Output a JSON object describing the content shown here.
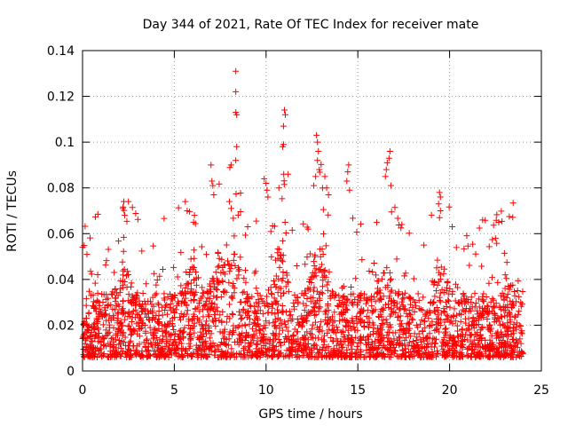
{
  "chart_data": {
    "type": "scatter",
    "title": "Day 344 of 2021, Rate Of TEC Index for receiver mate",
    "xlabel": "GPS time / hours",
    "ylabel": "ROTI / TECUs",
    "xlim": [
      0,
      25
    ],
    "ylim": [
      0,
      0.14
    ],
    "x_ticks": [
      "0",
      "5",
      "10",
      "15",
      "20",
      "25"
    ],
    "y_ticks": [
      "0",
      "0.02",
      "0.04",
      "0.06",
      "0.08",
      "0.1",
      "0.12",
      "0.14"
    ],
    "grid": true,
    "marker": "+",
    "color": "#ff0000",
    "series": [
      {
        "name": "ROTI",
        "points": [
          [
            8.35,
            0.131
          ],
          [
            8.35,
            0.122
          ],
          [
            8.35,
            0.113
          ],
          [
            8.4,
            0.112
          ],
          [
            8.4,
            0.098
          ],
          [
            8.35,
            0.092
          ],
          [
            11.0,
            0.114
          ],
          [
            11.05,
            0.112
          ],
          [
            10.95,
            0.107
          ],
          [
            10.95,
            0.099
          ],
          [
            10.9,
            0.098
          ],
          [
            11.2,
            0.086
          ],
          [
            12.75,
            0.103
          ],
          [
            12.8,
            0.1
          ],
          [
            12.85,
            0.096
          ],
          [
            12.8,
            0.092
          ],
          [
            12.9,
            0.088
          ],
          [
            12.7,
            0.085
          ],
          [
            16.75,
            0.096
          ],
          [
            16.7,
            0.093
          ],
          [
            16.6,
            0.091
          ],
          [
            16.55,
            0.088
          ],
          [
            16.5,
            0.085
          ],
          [
            16.8,
            0.081
          ],
          [
            14.5,
            0.09
          ],
          [
            14.45,
            0.087
          ],
          [
            14.4,
            0.083
          ],
          [
            14.55,
            0.079
          ],
          [
            7.0,
            0.09
          ],
          [
            7.05,
            0.083
          ],
          [
            7.1,
            0.081
          ],
          [
            7.15,
            0.077
          ],
          [
            9.9,
            0.084
          ],
          [
            10.0,
            0.082
          ],
          [
            10.05,
            0.079
          ],
          [
            10.1,
            0.076
          ],
          [
            10.7,
            0.08
          ],
          [
            13.2,
            0.085
          ],
          [
            13.3,
            0.08
          ],
          [
            13.4,
            0.077
          ],
          [
            12.6,
            0.081
          ],
          [
            19.45,
            0.078
          ],
          [
            19.5,
            0.076
          ],
          [
            19.4,
            0.073
          ],
          [
            19.5,
            0.07
          ],
          [
            19.45,
            0.067
          ],
          [
            2.25,
            0.074
          ],
          [
            2.5,
            0.074
          ],
          [
            2.2,
            0.071
          ],
          [
            2.3,
            0.068
          ],
          [
            5.6,
            0.074
          ],
          [
            5.7,
            0.07
          ],
          [
            8.0,
            0.074
          ],
          [
            8.1,
            0.071
          ],
          [
            6.05,
            0.065
          ],
          [
            6.1,
            0.068
          ],
          [
            21.8,
            0.066
          ],
          [
            17.4,
            0.064
          ],
          [
            9.0,
            0.063
          ]
        ]
      }
    ]
  }
}
